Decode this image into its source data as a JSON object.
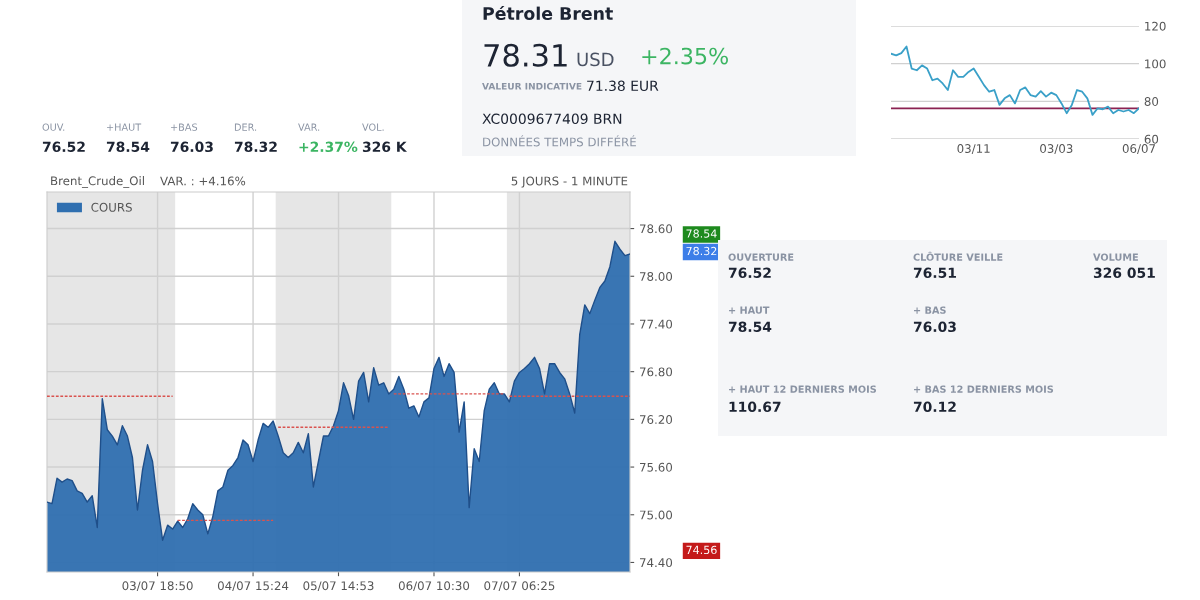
{
  "chart_data": [
    {
      "type": "other",
      "annotations": [
        "OUV.",
        "76.52",
        "+HAUT",
        "78.54",
        "+BAS",
        "76.03",
        "DER.",
        "78.32",
        "VAR.",
        "+2.37%",
        "VOL.",
        "326 K"
      ],
      "colors": [
        "#8a93a3",
        "#1d2433",
        "#8a93a3",
        "#1d2433",
        "#8a93a3",
        "#1d2433",
        "#8a93a3",
        "#1d2433",
        "#8a93a3",
        "#3cb563",
        "#8a93a3",
        "#1d2433"
      ]
    },
    {
      "type": "other",
      "title": "Pétrole Brent",
      "annotations": [
        "78.31",
        "USD",
        "+2.35%",
        "VALEUR INDICATIVE",
        "71.38 EUR",
        "XC0009677409 BRN",
        "DONNÉES TEMPS DIFFÉRÉ"
      ],
      "colors": [
        "#1d2433",
        "#4a5263",
        "#3cb563",
        "#8a93a3",
        "#1d2433",
        "#1d2433",
        "#8a93a3"
      ]
    },
    {
      "type": "area",
      "title": "Brent_Crude_Oil",
      "subtitle": "VAR. : +4.16%",
      "annotations": [
        "5 JOURS - 1 MINUTE"
      ],
      "categories": [
        null,
        null,
        null,
        null,
        null,
        null,
        null,
        null,
        null,
        null,
        null,
        null,
        null,
        null,
        null,
        null,
        null,
        null,
        null,
        null,
        null,
        null,
        "03/07 18:50",
        null,
        null,
        null,
        null,
        null,
        null,
        null,
        null,
        null,
        null,
        null,
        null,
        null,
        null,
        null,
        null,
        null,
        null,
        "04/07 15:24",
        null,
        null,
        null,
        null,
        null,
        null,
        null,
        null,
        null,
        null,
        null,
        null,
        null,
        null,
        null,
        null,
        "05/07 14:53",
        null,
        null,
        null,
        null,
        null,
        null,
        null,
        null,
        null,
        null,
        null,
        null,
        null,
        null,
        null,
        null,
        null,
        null,
        "06/07 10:30",
        null,
        null,
        null,
        null,
        null,
        null,
        null,
        null,
        null,
        null,
        null,
        null,
        null,
        null,
        null,
        null,
        "07/07 06:25",
        null,
        null,
        null,
        null,
        null,
        null,
        null,
        null,
        null,
        null,
        null,
        null,
        null,
        null,
        null,
        null,
        null,
        null,
        null,
        null,
        null,
        null
      ],
      "ylim": [
        74.28,
        79.06
      ],
      "y2lim": [
        74.28,
        79.06
      ],
      "yticks": [
        {
          "value": 74.4,
          "label": "74.40"
        },
        {
          "value": 75.0,
          "label": "75.00"
        },
        {
          "value": 75.6,
          "label": "75.60"
        },
        {
          "value": 76.2,
          "label": "76.20"
        },
        {
          "value": 76.8,
          "label": "76.80"
        },
        {
          "value": 77.4,
          "label": "77.40"
        },
        {
          "value": 78.0,
          "label": "78.00"
        },
        {
          "value": 78.6,
          "label": "78.60"
        }
      ],
      "y2ticks": [
        {
          "value": 78.54,
          "label": "78.54"
        },
        {
          "value": 78.32,
          "label": "78.32"
        },
        {
          "value": 74.56,
          "label": "74.56"
        }
      ],
      "grid": true,
      "legend": "top left",
      "marker": "none",
      "series": [
        {
          "name": "COURS",
          "color": "#2f6fb0",
          "values": [
            75.16,
            75.14,
            75.46,
            75.41,
            75.45,
            75.43,
            75.3,
            75.27,
            75.16,
            75.24,
            74.84,
            76.46,
            76.07,
            75.99,
            75.88,
            76.12,
            75.99,
            75.72,
            75.06,
            75.56,
            75.88,
            75.67,
            75.14,
            74.68,
            74.87,
            74.82,
            74.92,
            74.84,
            74.95,
            75.14,
            75.06,
            75.0,
            74.76,
            74.98,
            75.3,
            75.35,
            75.56,
            75.62,
            75.72,
            75.94,
            75.88,
            75.67,
            75.94,
            76.15,
            76.1,
            76.18,
            75.99,
            75.78,
            75.72,
            75.78,
            75.91,
            75.78,
            76.02,
            75.35,
            75.67,
            75.99,
            75.99,
            76.12,
            76.31,
            76.66,
            76.5,
            76.2,
            76.68,
            76.79,
            76.42,
            76.85,
            76.63,
            76.66,
            76.52,
            76.58,
            76.74,
            76.58,
            76.34,
            76.37,
            76.23,
            76.42,
            76.47,
            76.84,
            76.98,
            76.74,
            76.9,
            76.79,
            76.04,
            76.42,
            75.09,
            75.83,
            75.67,
            76.31,
            76.58,
            76.66,
            76.52,
            76.52,
            76.42,
            76.68,
            76.79,
            76.84,
            76.9,
            76.98,
            76.84,
            76.52,
            76.9,
            76.9,
            76.79,
            76.71,
            76.52,
            76.28,
            77.27,
            77.64,
            77.53,
            77.7,
            77.86,
            77.94,
            78.12,
            78.44,
            78.34,
            78.26,
            78.28
          ]
        },
        {
          "type": "line",
          "line_style": "dashed",
          "color": "#d9534f",
          "values": [
            76.49,
            76.49,
            76.49,
            76.49,
            76.49,
            76.49,
            76.49,
            76.49,
            76.49,
            76.49,
            76.49,
            76.49,
            76.49,
            76.49,
            76.49,
            76.49,
            76.49,
            76.49,
            76.49,
            76.49,
            76.49,
            76.49,
            76.49,
            76.49,
            76.49,
            76.49,
            null,
            null,
            null,
            null,
            null,
            null,
            null,
            null,
            null,
            null,
            null,
            null,
            null,
            null,
            null,
            null,
            null,
            null,
            null,
            null,
            null,
            null,
            null,
            null,
            null,
            null,
            null,
            null,
            null,
            null,
            null,
            null,
            null,
            null,
            null,
            null,
            null,
            null,
            null,
            null,
            null,
            null,
            null,
            null,
            null,
            null,
            null,
            null,
            null,
            null,
            null,
            null,
            null,
            null,
            null,
            null,
            null,
            null,
            null,
            null,
            null,
            null,
            null,
            null,
            null,
            null,
            null,
            null,
            null,
            null,
            null,
            null,
            null,
            null,
            null,
            null,
            null,
            null,
            null,
            null,
            null,
            null,
            null,
            null,
            null,
            null,
            null,
            null,
            null,
            null,
            null
          ]
        },
        {
          "type": "line",
          "line_style": "dashed",
          "color": "#d9534f",
          "values": [
            null,
            null,
            null,
            null,
            null,
            null,
            null,
            null,
            null,
            null,
            null,
            null,
            null,
            null,
            null,
            null,
            null,
            null,
            null,
            null,
            null,
            null,
            null,
            null,
            null,
            null,
            74.93,
            74.93,
            74.93,
            74.93,
            74.93,
            74.93,
            74.93,
            74.93,
            74.93,
            74.93,
            74.93,
            74.93,
            74.93,
            74.93,
            74.93,
            74.93,
            74.93,
            74.93,
            74.93,
            74.93,
            null,
            null,
            null,
            null,
            null,
            null,
            null,
            null,
            null,
            null,
            null,
            null,
            null,
            null,
            null,
            null,
            null,
            null,
            null,
            null,
            null,
            null,
            null,
            null,
            null,
            null,
            null,
            null,
            null,
            null,
            null,
            null,
            null,
            null,
            null,
            null,
            null,
            null,
            null,
            null,
            null,
            null,
            null,
            null,
            null,
            null,
            null,
            null,
            null,
            null,
            null,
            null,
            null,
            null,
            null,
            null,
            null,
            null,
            null,
            null,
            null,
            null,
            null,
            null,
            null,
            null,
            null,
            null,
            null,
            null,
            null
          ]
        },
        {
          "type": "line",
          "line_style": "dashed",
          "color": "#d9534f",
          "values": [
            null,
            null,
            null,
            null,
            null,
            null,
            null,
            null,
            null,
            null,
            null,
            null,
            null,
            null,
            null,
            null,
            null,
            null,
            null,
            null,
            null,
            null,
            null,
            null,
            null,
            null,
            null,
            null,
            null,
            null,
            null,
            null,
            null,
            null,
            null,
            null,
            null,
            null,
            null,
            null,
            null,
            null,
            null,
            null,
            null,
            null,
            76.1,
            76.1,
            76.1,
            76.1,
            76.1,
            76.1,
            76.1,
            76.1,
            76.1,
            76.1,
            76.1,
            76.1,
            76.1,
            76.1,
            76.1,
            76.1,
            76.1,
            76.1,
            76.1,
            76.1,
            76.1,
            76.1,
            76.1,
            null,
            null,
            null,
            null,
            null,
            null,
            null,
            null,
            null,
            null,
            null,
            null,
            null,
            null,
            null,
            null,
            null,
            null,
            null,
            null,
            null,
            null,
            null,
            null,
            null,
            null,
            null,
            null,
            null,
            null,
            null,
            null,
            null,
            null,
            null,
            null,
            null,
            null,
            null,
            null,
            null,
            null,
            null,
            null,
            null,
            null,
            null,
            null
          ]
        },
        {
          "type": "line",
          "line_style": "dashed",
          "color": "#d9534f",
          "values": [
            null,
            null,
            null,
            null,
            null,
            null,
            null,
            null,
            null,
            null,
            null,
            null,
            null,
            null,
            null,
            null,
            null,
            null,
            null,
            null,
            null,
            null,
            null,
            null,
            null,
            null,
            null,
            null,
            null,
            null,
            null,
            null,
            null,
            null,
            null,
            null,
            null,
            null,
            null,
            null,
            null,
            null,
            null,
            null,
            null,
            null,
            null,
            null,
            null,
            null,
            null,
            null,
            null,
            null,
            null,
            null,
            null,
            null,
            null,
            null,
            null,
            null,
            null,
            null,
            null,
            null,
            null,
            null,
            null,
            76.52,
            76.52,
            76.52,
            76.52,
            76.52,
            76.52,
            76.52,
            76.52,
            76.52,
            76.52,
            76.52,
            76.52,
            76.52,
            76.52,
            76.52,
            76.52,
            76.52,
            76.52,
            76.52,
            76.52,
            76.52,
            76.52,
            76.52,
            null,
            null,
            null,
            null,
            null,
            null,
            null,
            null,
            null,
            null,
            null,
            null,
            null,
            null,
            null,
            null,
            null,
            null,
            null,
            null,
            null,
            null,
            null,
            null,
            null
          ]
        },
        {
          "type": "line",
          "line_style": "dashed",
          "color": "#d9534f",
          "values": [
            null,
            null,
            null,
            null,
            null,
            null,
            null,
            null,
            null,
            null,
            null,
            null,
            null,
            null,
            null,
            null,
            null,
            null,
            null,
            null,
            null,
            null,
            null,
            null,
            null,
            null,
            null,
            null,
            null,
            null,
            null,
            null,
            null,
            null,
            null,
            null,
            null,
            null,
            null,
            null,
            null,
            null,
            null,
            null,
            null,
            null,
            null,
            null,
            null,
            null,
            null,
            null,
            null,
            null,
            null,
            null,
            null,
            null,
            null,
            null,
            null,
            null,
            null,
            null,
            null,
            null,
            null,
            null,
            null,
            null,
            null,
            null,
            null,
            null,
            null,
            null,
            null,
            null,
            null,
            null,
            null,
            null,
            null,
            null,
            null,
            null,
            null,
            null,
            null,
            null,
            null,
            null,
            76.49,
            76.49,
            76.49,
            76.49,
            76.49,
            76.49,
            76.49,
            76.49,
            76.49,
            76.49,
            76.49,
            76.49,
            76.49,
            76.49,
            76.49,
            76.49,
            76.49,
            76.49,
            76.49,
            76.49,
            76.49,
            76.49,
            76.49,
            76.49,
            76.49
          ]
        }
      ]
    },
    {
      "type": "line",
      "ylim": [
        60,
        120
      ],
      "categories": [
        null,
        null,
        null,
        null,
        null,
        null,
        null,
        null,
        null,
        null,
        null,
        null,
        null,
        null,
        null,
        null,
        "03/11",
        null,
        null,
        null,
        null,
        null,
        null,
        null,
        null,
        null,
        null,
        null,
        null,
        null,
        null,
        null,
        "03/03",
        null,
        null,
        null,
        null,
        null,
        null,
        null,
        null,
        null,
        null,
        null,
        null,
        null,
        null,
        null,
        "06/07"
      ],
      "yticks": [
        60,
        80,
        100,
        120
      ],
      "grid": "y",
      "marker": "none",
      "ref_lines": [
        {
          "axis": "y",
          "value": 76.3,
          "color": "#8b2252"
        }
      ],
      "series": [
        {
          "color": "#3aa0c8",
          "values": [
            105.3,
            104.4,
            105.6,
            109.1,
            97.4,
            96.5,
            99.1,
            97.4,
            91.2,
            92.1,
            89.5,
            86.0,
            96.5,
            93.0,
            93.0,
            95.6,
            97.4,
            93.0,
            88.6,
            85.1,
            86.0,
            78.1,
            81.6,
            83.3,
            78.9,
            86.0,
            87.4,
            83.3,
            82.5,
            85.4,
            82.5,
            84.6,
            83.3,
            78.9,
            73.7,
            78.1,
            86.0,
            85.1,
            81.6,
            72.8,
            76.3,
            75.8,
            77.2,
            73.7,
            75.4,
            74.6,
            75.4,
            73.7,
            76.3
          ]
        }
      ]
    },
    {
      "type": "other",
      "annotations": [
        "OUVERTURE",
        "76.52",
        "CLÔTURE VEILLE",
        "76.51",
        "VOLUME",
        "326 051",
        "+ HAUT",
        "78.54",
        "+ BAS",
        "76.03",
        "+ HAUT 12 DERNIERS MOIS",
        "110.67",
        "+ BAS 12 DERNIERS MOIS",
        "70.12"
      ],
      "colors": [
        "#8a93a3",
        "#1d2433",
        "#8a93a3",
        "#1d2433",
        "#8a93a3",
        "#1d2433",
        "#8a93a3",
        "#1d2433",
        "#8a93a3",
        "#1d2433",
        "#8a93a3",
        "#1d2433",
        "#8a93a3",
        "#1d2433"
      ]
    }
  ]
}
